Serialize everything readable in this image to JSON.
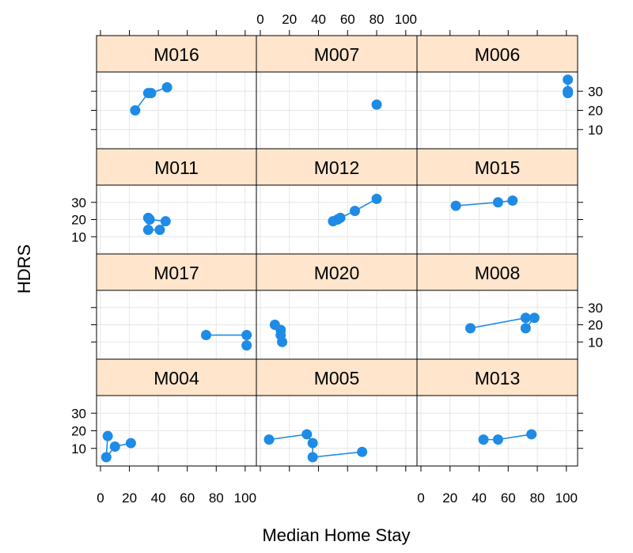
{
  "chart_data": {
    "type": "scatter",
    "subtype": "lattice-xyplot-points-and-lines",
    "xlabel": "Median Home Stay",
    "ylabel": "HDRS",
    "xlim": [
      0,
      105
    ],
    "ylim": [
      0,
      40
    ],
    "x_ticks": [
      0,
      20,
      40,
      60,
      80,
      100
    ],
    "y_ticks": [
      10,
      20,
      30
    ],
    "grid": true,
    "layout": {
      "columns": 3,
      "rows": 4
    },
    "colors": {
      "points": "#1e8be6",
      "lines": "#1e8be6",
      "strip_bg": "#ffe5cc",
      "grid": "#e6e6e6",
      "frame": "#000000"
    },
    "panels": [
      {
        "label": "M016",
        "x": [
          24,
          33,
          35,
          46
        ],
        "y": [
          20,
          29,
          29,
          32
        ]
      },
      {
        "label": "M007",
        "x": [
          80
        ],
        "y": [
          23
        ]
      },
      {
        "label": "M006",
        "x": [
          101,
          101,
          101
        ],
        "y": [
          30,
          29,
          36
        ]
      },
      {
        "label": "M011",
        "x": [
          33,
          33,
          41,
          45,
          34
        ],
        "y": [
          21,
          14,
          14,
          19,
          20
        ]
      },
      {
        "label": "M012",
        "x": [
          50,
          53,
          55,
          65,
          80
        ],
        "y": [
          19,
          20,
          21,
          25,
          32
        ]
      },
      {
        "label": "M015",
        "x": [
          24,
          53,
          63
        ],
        "y": [
          28,
          30,
          31
        ]
      },
      {
        "label": "M017",
        "x": [
          73,
          101,
          101
        ],
        "y": [
          14,
          14,
          8
        ]
      },
      {
        "label": "M020",
        "x": [
          10,
          14,
          14,
          15
        ],
        "y": [
          20,
          17,
          14,
          10
        ]
      },
      {
        "label": "M008",
        "x": [
          34,
          72,
          78,
          72
        ],
        "y": [
          18,
          24,
          24,
          18
        ]
      },
      {
        "label": "M004",
        "x": [
          5,
          4,
          10,
          21
        ],
        "y": [
          17,
          5,
          11,
          13
        ]
      },
      {
        "label": "M005",
        "x": [
          6,
          32,
          36,
          36,
          70
        ],
        "y": [
          15,
          18,
          13,
          5,
          8
        ]
      },
      {
        "label": "M013",
        "x": [
          43,
          53,
          76
        ],
        "y": [
          15,
          15,
          18
        ]
      }
    ]
  }
}
